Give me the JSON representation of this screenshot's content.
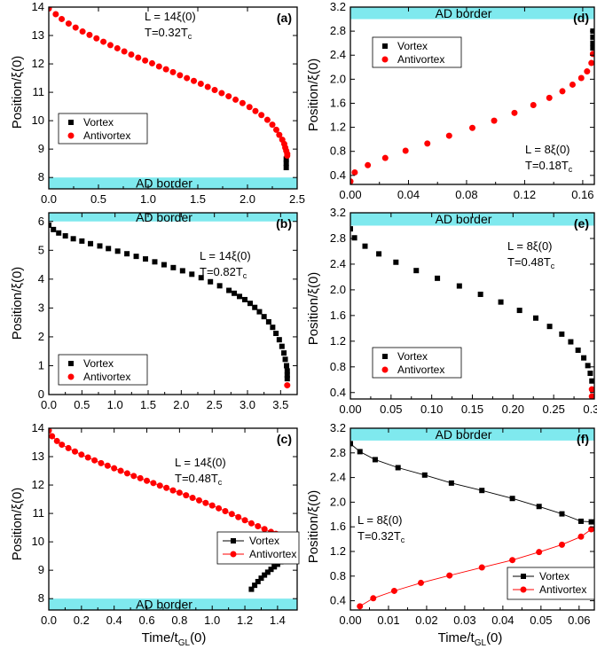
{
  "figure": {
    "xlabel": "Time/t",
    "xlabel_sub": "GL",
    "xlabel_tail": "(0)"
  },
  "colors": {
    "vortex": "#000000",
    "antivortex": "#ff0000",
    "band": "#7fe9ee"
  },
  "chart_data": [
    {
      "id": "a",
      "type": "scatter",
      "panel_label": "(a)",
      "annotation": {
        "line1": "L = 14ξ(0)",
        "line2": "T=0.32T",
        "line2_sub": "c"
      },
      "border_label": "AD border",
      "border_position": "bottom",
      "border_range": [
        7.6,
        8.0
      ],
      "xlim": [
        0,
        2.5
      ],
      "ylim": [
        7.6,
        14
      ],
      "xticks": [
        "0.0",
        "0.5",
        "1.0",
        "1.5",
        "2.0",
        "2.5"
      ],
      "xtick_values": [
        0,
        0.5,
        1,
        1.5,
        2,
        2.5
      ],
      "yticks": [
        "8",
        "9",
        "10",
        "11",
        "12",
        "13",
        "14"
      ],
      "ytick_values": [
        8,
        9,
        10,
        11,
        12,
        13,
        14
      ],
      "ylabel": "Position/ξ(0)",
      "xlabel": "",
      "legend": {
        "position": "center-left",
        "lines": false
      },
      "series": [
        {
          "name": "Vortex",
          "marker": "square",
          "color": "#000000",
          "x": [
            2.39,
            2.39,
            2.39
          ],
          "y": [
            8.35,
            8.5,
            8.65
          ]
        },
        {
          "name": "Antivortex",
          "marker": "circle",
          "color": "#ff0000",
          "x": [
            0,
            0.07,
            0.13,
            0.2,
            0.27,
            0.34,
            0.41,
            0.48,
            0.55,
            0.62,
            0.69,
            0.76,
            0.83,
            0.9,
            0.97,
            1.04,
            1.11,
            1.18,
            1.25,
            1.32,
            1.39,
            1.46,
            1.53,
            1.6,
            1.67,
            1.74,
            1.81,
            1.88,
            1.95,
            2.02,
            2.08,
            2.14,
            2.2,
            2.25,
            2.29,
            2.32,
            2.35,
            2.37,
            2.38,
            2.39,
            2.4,
            2.4
          ],
          "y": [
            13.95,
            13.75,
            13.58,
            13.42,
            13.28,
            13.14,
            13.02,
            12.9,
            12.78,
            12.66,
            12.55,
            12.44,
            12.33,
            12.22,
            12.12,
            12.02,
            11.91,
            11.81,
            11.71,
            11.6,
            11.5,
            11.4,
            11.3,
            11.19,
            11.08,
            10.97,
            10.86,
            10.74,
            10.62,
            10.48,
            10.34,
            10.2,
            10.03,
            9.86,
            9.68,
            9.5,
            9.33,
            9.18,
            9.05,
            8.94,
            8.83,
            8.77
          ]
        }
      ]
    },
    {
      "id": "b",
      "type": "scatter",
      "panel_label": "(b)",
      "annotation": {
        "line1": "L = 14ξ(0)",
        "line2": "T=0.82T",
        "line2_sub": "c"
      },
      "border_label": "AD border",
      "border_position": "top",
      "border_range": [
        6.0,
        6.3
      ],
      "xlim": [
        0,
        3.75
      ],
      "ylim": [
        0,
        6.3
      ],
      "xticks": [
        "0.0",
        "0.5",
        "1.0",
        "1.5",
        "2.0",
        "2.5",
        "3.0",
        "3.5"
      ],
      "xtick_values": [
        0,
        0.5,
        1,
        1.5,
        2,
        2.5,
        3,
        3.5
      ],
      "yticks": [
        "0",
        "1",
        "2",
        "3",
        "4",
        "5",
        "6"
      ],
      "ytick_values": [
        0,
        1,
        2,
        3,
        4,
        5,
        6
      ],
      "ylabel": "Position/ξ(0)",
      "xlabel": "",
      "legend": {
        "position": "bottom-left",
        "lines": false
      },
      "series": [
        {
          "name": "Vortex",
          "marker": "square",
          "color": "#000000",
          "x": [
            0,
            0.07,
            0.15,
            0.25,
            0.37,
            0.5,
            0.63,
            0.77,
            0.9,
            1.04,
            1.18,
            1.32,
            1.46,
            1.6,
            1.74,
            1.88,
            2.02,
            2.16,
            2.3,
            2.44,
            2.58,
            2.72,
            2.8,
            2.88,
            2.96,
            3.04,
            3.11,
            3.18,
            3.25,
            3.32,
            3.38,
            3.43,
            3.48,
            3.52,
            3.55,
            3.57,
            3.59,
            3.6,
            3.6,
            3.6
          ],
          "y": [
            5.87,
            5.72,
            5.6,
            5.5,
            5.4,
            5.32,
            5.23,
            5.15,
            5.06,
            4.97,
            4.88,
            4.79,
            4.7,
            4.6,
            4.5,
            4.4,
            4.29,
            4.17,
            4.05,
            3.91,
            3.77,
            3.61,
            3.51,
            3.4,
            3.29,
            3.16,
            3.02,
            2.87,
            2.7,
            2.52,
            2.33,
            2.12,
            1.9,
            1.67,
            1.44,
            1.22,
            1.0,
            0.82,
            0.67,
            0.55
          ]
        },
        {
          "name": "Antivortex",
          "marker": "circle",
          "color": "#ff0000",
          "x": [
            3.6
          ],
          "y": [
            0.32
          ]
        }
      ]
    },
    {
      "id": "c",
      "type": "scatter",
      "panel_label": "(c)",
      "annotation": {
        "line1": "L = 14ξ(0)",
        "line2": "T=0.48T",
        "line2_sub": "c"
      },
      "border_label": "AD border",
      "border_position": "bottom",
      "border_range": [
        7.6,
        8.0
      ],
      "xlim": [
        0,
        1.52
      ],
      "ylim": [
        7.6,
        14
      ],
      "xticks": [
        "0.0",
        "0.2",
        "0.4",
        "0.6",
        "0.8",
        "1.0",
        "1.2",
        "1.4"
      ],
      "xtick_values": [
        0,
        0.2,
        0.4,
        0.6,
        0.8,
        1,
        1.2,
        1.4
      ],
      "yticks": [
        "8",
        "9",
        "10",
        "11",
        "12",
        "13",
        "14"
      ],
      "ytick_values": [
        8,
        9,
        10,
        11,
        12,
        13,
        14
      ],
      "ylabel": "Position/ξ(0)",
      "xlabel": "Time/t_GL(0)",
      "legend": {
        "position": "center-right",
        "lines": true
      },
      "series": [
        {
          "name": "Vortex",
          "marker": "square",
          "color": "#000000",
          "x": [
            1.24,
            1.26,
            1.28,
            1.3,
            1.32,
            1.34,
            1.36,
            1.38,
            1.4,
            1.42,
            1.44,
            1.46,
            1.47,
            1.48,
            1.49
          ],
          "y": [
            8.33,
            8.47,
            8.6,
            8.72,
            8.83,
            8.93,
            9.03,
            9.12,
            9.21,
            9.3,
            9.39,
            9.48,
            9.58,
            9.68,
            9.78
          ]
        },
        {
          "name": "Antivortex",
          "marker": "circle",
          "color": "#ff0000",
          "x": [
            0,
            0.02,
            0.05,
            0.08,
            0.12,
            0.16,
            0.2,
            0.24,
            0.28,
            0.32,
            0.36,
            0.4,
            0.44,
            0.48,
            0.52,
            0.56,
            0.6,
            0.64,
            0.68,
            0.72,
            0.76,
            0.8,
            0.84,
            0.88,
            0.92,
            0.96,
            1.0,
            1.04,
            1.08,
            1.12,
            1.16,
            1.2,
            1.24,
            1.28,
            1.32,
            1.36,
            1.39,
            1.42,
            1.44,
            1.46,
            1.47,
            1.48,
            1.49
          ],
          "y": [
            13.92,
            13.72,
            13.55,
            13.42,
            13.3,
            13.18,
            13.07,
            12.97,
            12.87,
            12.77,
            12.68,
            12.59,
            12.5,
            12.41,
            12.32,
            12.24,
            12.15,
            12.07,
            11.98,
            11.9,
            11.81,
            11.73,
            11.64,
            11.55,
            11.46,
            11.37,
            11.28,
            11.18,
            11.08,
            10.98,
            10.87,
            10.76,
            10.65,
            10.55,
            10.45,
            10.35,
            10.28,
            10.21,
            10.15,
            10.09,
            10.03,
            9.96,
            9.88
          ]
        }
      ]
    },
    {
      "id": "d",
      "type": "scatter",
      "panel_label": "(d)",
      "annotation": {
        "line1": "L = 8ξ(0)",
        "line2": "T=0.18T",
        "line2_sub": "c"
      },
      "border_label": "AD border",
      "border_position": "top",
      "border_range": [
        3.0,
        3.2
      ],
      "xlim": [
        0,
        0.168
      ],
      "ylim": [
        0.25,
        3.2
      ],
      "xticks": [
        "0.00",
        "0.04",
        "0.08",
        "0.12",
        "0.16"
      ],
      "xtick_values": [
        0,
        0.04,
        0.08,
        0.12,
        0.16
      ],
      "yticks": [
        "0.4",
        "0.8",
        "1.2",
        "1.6",
        "2.0",
        "2.4",
        "2.8",
        "3.2"
      ],
      "ytick_values": [
        0.4,
        0.8,
        1.2,
        1.6,
        2.0,
        2.4,
        2.8,
        3.2
      ],
      "ylabel": "Position/ξ(0)",
      "xlabel": "",
      "legend": {
        "position": "top-left",
        "lines": false
      },
      "series": [
        {
          "name": "Vortex",
          "marker": "square",
          "color": "#000000",
          "x": [
            0.167,
            0.167,
            0.167,
            0.167
          ],
          "y": [
            2.8,
            2.7,
            2.6,
            2.52
          ]
        },
        {
          "name": "Antivortex",
          "marker": "circle",
          "color": "#ff0000",
          "x": [
            0,
            0.003,
            0.012,
            0.024,
            0.038,
            0.053,
            0.068,
            0.084,
            0.099,
            0.113,
            0.126,
            0.137,
            0.146,
            0.153,
            0.159,
            0.163,
            0.166,
            0.167
          ],
          "y": [
            0.3,
            0.45,
            0.57,
            0.69,
            0.81,
            0.93,
            1.06,
            1.19,
            1.31,
            1.44,
            1.57,
            1.69,
            1.8,
            1.91,
            2.02,
            2.13,
            2.27,
            2.42
          ]
        }
      ]
    },
    {
      "id": "e",
      "type": "scatter",
      "panel_label": "(e)",
      "annotation": {
        "line1": "L = 8ξ(0)",
        "line2": "T=0.48T",
        "line2_sub": "c"
      },
      "border_label": "AD border",
      "border_position": "top",
      "border_range": [
        3.0,
        3.2
      ],
      "xlim": [
        0,
        0.3
      ],
      "ylim": [
        0.3,
        3.2
      ],
      "xticks": [
        "0.00",
        "0.05",
        "0.10",
        "0.15",
        "0.20",
        "0.25",
        "0.30"
      ],
      "xtick_values": [
        0,
        0.05,
        0.1,
        0.15,
        0.2,
        0.25,
        0.3
      ],
      "yticks": [
        "0.4",
        "0.8",
        "1.2",
        "1.6",
        "2.0",
        "2.4",
        "2.8",
        "3.2"
      ],
      "ytick_values": [
        0.4,
        0.8,
        1.2,
        1.6,
        2.0,
        2.4,
        2.8,
        3.2
      ],
      "ylabel": "Position/ξ(0)",
      "xlabel": "",
      "legend": {
        "position": "bottom-left",
        "lines": false
      },
      "series": [
        {
          "name": "Vortex",
          "marker": "square",
          "color": "#000000",
          "x": [
            0,
            0.005,
            0.018,
            0.035,
            0.056,
            0.081,
            0.107,
            0.134,
            0.16,
            0.185,
            0.208,
            0.228,
            0.245,
            0.26,
            0.271,
            0.28,
            0.287,
            0.292,
            0.295,
            0.297
          ],
          "y": [
            2.95,
            2.81,
            2.68,
            2.56,
            2.43,
            2.3,
            2.18,
            2.06,
            1.93,
            1.81,
            1.68,
            1.56,
            1.43,
            1.31,
            1.19,
            1.06,
            0.94,
            0.82,
            0.7,
            0.58
          ]
        },
        {
          "name": "Antivortex",
          "marker": "circle",
          "color": "#ff0000",
          "x": [
            0.297,
            0.297
          ],
          "y": [
            0.45,
            0.34
          ]
        }
      ]
    },
    {
      "id": "f",
      "type": "line",
      "panel_label": "(f)",
      "annotation": {
        "line1": "L = 8ξ(0)",
        "line2": "T=0.32T",
        "line2_sub": "c"
      },
      "border_label": "AD border",
      "border_position": "top",
      "border_range": [
        3.0,
        3.2
      ],
      "xlim": [
        0,
        0.064
      ],
      "ylim": [
        0.25,
        3.2
      ],
      "xticks": [
        "0.00",
        "0.01",
        "0.02",
        "0.03",
        "0.04",
        "0.05",
        "0.06"
      ],
      "xtick_values": [
        0,
        0.01,
        0.02,
        0.03,
        0.04,
        0.05,
        0.06
      ],
      "yticks": [
        "0.4",
        "0.8",
        "1.2",
        "1.6",
        "2.0",
        "2.4",
        "2.8",
        "3.2"
      ],
      "ytick_values": [
        0.4,
        0.8,
        1.2,
        1.6,
        2.0,
        2.4,
        2.8,
        3.2
      ],
      "ylabel": "Position/ξ(0)",
      "xlabel": "Time/t_GL(0)",
      "legend": {
        "position": "bottom-right",
        "lines": true
      },
      "series": [
        {
          "name": "Vortex",
          "marker": "square",
          "color": "#000000",
          "x": [
            0,
            0.0025,
            0.0065,
            0.0125,
            0.0195,
            0.0265,
            0.0345,
            0.0425,
            0.0495,
            0.0555,
            0.0605,
            0.0632
          ],
          "y": [
            2.95,
            2.82,
            2.69,
            2.56,
            2.44,
            2.31,
            2.19,
            2.06,
            1.93,
            1.81,
            1.69,
            1.68
          ]
        },
        {
          "name": "Antivortex",
          "marker": "circle",
          "color": "#ff0000",
          "x": [
            0.0025,
            0.006,
            0.0115,
            0.0185,
            0.026,
            0.0345,
            0.0425,
            0.0495,
            0.0555,
            0.0605,
            0.0632
          ],
          "y": [
            0.31,
            0.44,
            0.56,
            0.69,
            0.81,
            0.94,
            1.06,
            1.19,
            1.31,
            1.44,
            1.56
          ]
        }
      ]
    }
  ]
}
